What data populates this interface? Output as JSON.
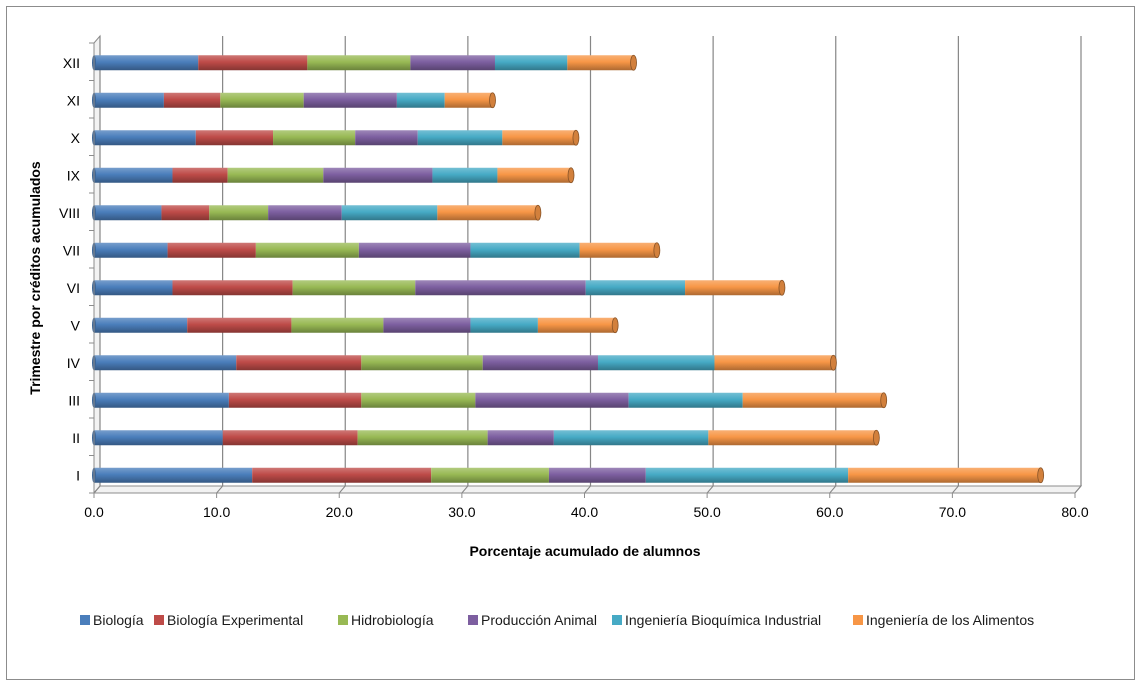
{
  "chart_data": {
    "type": "bar",
    "orientation": "horizontal",
    "stacked": true,
    "title": "",
    "xlabel": "Porcentaje acumulado  de alumnos",
    "ylabel": "Trimestre por créditos acumulados",
    "xlim": [
      0,
      80
    ],
    "xticks": [
      "0.0",
      "10.0",
      "20.0",
      "30.0",
      "40.0",
      "50.0",
      "60.0",
      "70.0",
      "80.0"
    ],
    "grid": "vertical",
    "legend_position": "bottom",
    "categories": [
      "I",
      "II",
      "III",
      "IV",
      "V",
      "VI",
      "VII",
      "VIII",
      "IX",
      "X",
      "XI",
      "XII"
    ],
    "series": [
      {
        "name": "Biología",
        "color": "#4a7ebb",
        "values": [
          12.9,
          10.5,
          11.0,
          11.6,
          7.6,
          6.4,
          6.0,
          5.5,
          6.4,
          8.3,
          5.7,
          8.5
        ]
      },
      {
        "name": "Biología Experimental",
        "color": "#be4b48",
        "values": [
          14.6,
          11.0,
          10.8,
          10.2,
          8.5,
          9.8,
          7.2,
          3.9,
          4.5,
          6.3,
          4.6,
          8.9
        ]
      },
      {
        "name": "Hidrobiología",
        "color": "#98b954",
        "values": [
          9.6,
          10.6,
          9.3,
          9.9,
          7.5,
          10.0,
          8.4,
          4.8,
          7.8,
          6.7,
          6.8,
          8.4
        ]
      },
      {
        "name": "Producción Animal",
        "color": "#7d5fa0",
        "values": [
          7.9,
          5.4,
          12.5,
          9.4,
          7.1,
          13.9,
          9.1,
          6.0,
          8.9,
          5.1,
          7.6,
          6.9
        ]
      },
      {
        "name": "Ingeniería Bioquímica Industrial",
        "color": "#46aac5",
        "values": [
          16.5,
          12.6,
          9.3,
          9.5,
          5.5,
          8.1,
          8.9,
          7.8,
          5.3,
          6.9,
          3.9,
          5.9
        ]
      },
      {
        "name": "Ingeniería de los Alimentos",
        "color": "#f79646",
        "values": [
          15.7,
          13.7,
          11.5,
          9.7,
          6.3,
          7.9,
          6.3,
          8.2,
          6.0,
          6.0,
          3.9,
          5.4
        ]
      }
    ]
  }
}
